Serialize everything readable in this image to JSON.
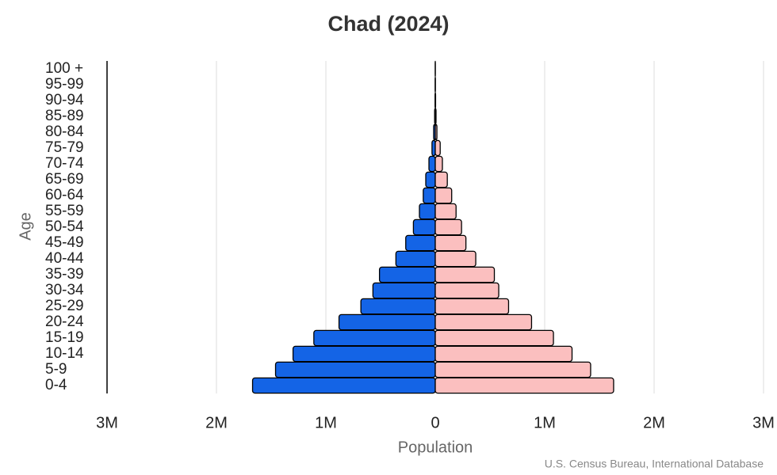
{
  "chart_data": {
    "type": "pyramid",
    "title": "Chad (2024)",
    "x_label": "Population",
    "y_label": "Age",
    "source": "U.S. Census Bureau, International Database",
    "categories": [
      "0-4",
      "5-9",
      "10-14",
      "15-19",
      "20-24",
      "25-29",
      "30-34",
      "35-39",
      "40-44",
      "45-49",
      "50-54",
      "55-59",
      "60-64",
      "65-69",
      "70-74",
      "75-79",
      "80-84",
      "85-89",
      "90-94",
      "95-99",
      "100 +"
    ],
    "series": [
      {
        "color": "#1464e6",
        "values": [
          -1670000,
          -1460000,
          -1300000,
          -1110000,
          -880000,
          -680000,
          -570000,
          -510000,
          -360000,
          -270000,
          -200000,
          -145000,
          -110000,
          -87000,
          -58000,
          -30000,
          -15000,
          -6000,
          -2000,
          -1000,
          -300
        ]
      },
      {
        "color": "#fbbfbf",
        "values": [
          1630000,
          1420000,
          1250000,
          1080000,
          880000,
          670000,
          580000,
          540000,
          370000,
          280000,
          240000,
          190000,
          150000,
          110000,
          65000,
          45000,
          15000,
          7000,
          3000,
          1000,
          300
        ]
      }
    ],
    "xlim": [
      -3000000,
      3000000
    ],
    "xticks": [
      {
        "value": -3000000,
        "label": "3M"
      },
      {
        "value": -2000000,
        "label": "2M"
      },
      {
        "value": -1000000,
        "label": "1M"
      },
      0,
      {
        "value": 1000000,
        "label": "1M"
      },
      {
        "value": 2000000,
        "label": "2M"
      },
      {
        "value": 3000000,
        "label": "3M"
      }
    ],
    "grid": true
  }
}
